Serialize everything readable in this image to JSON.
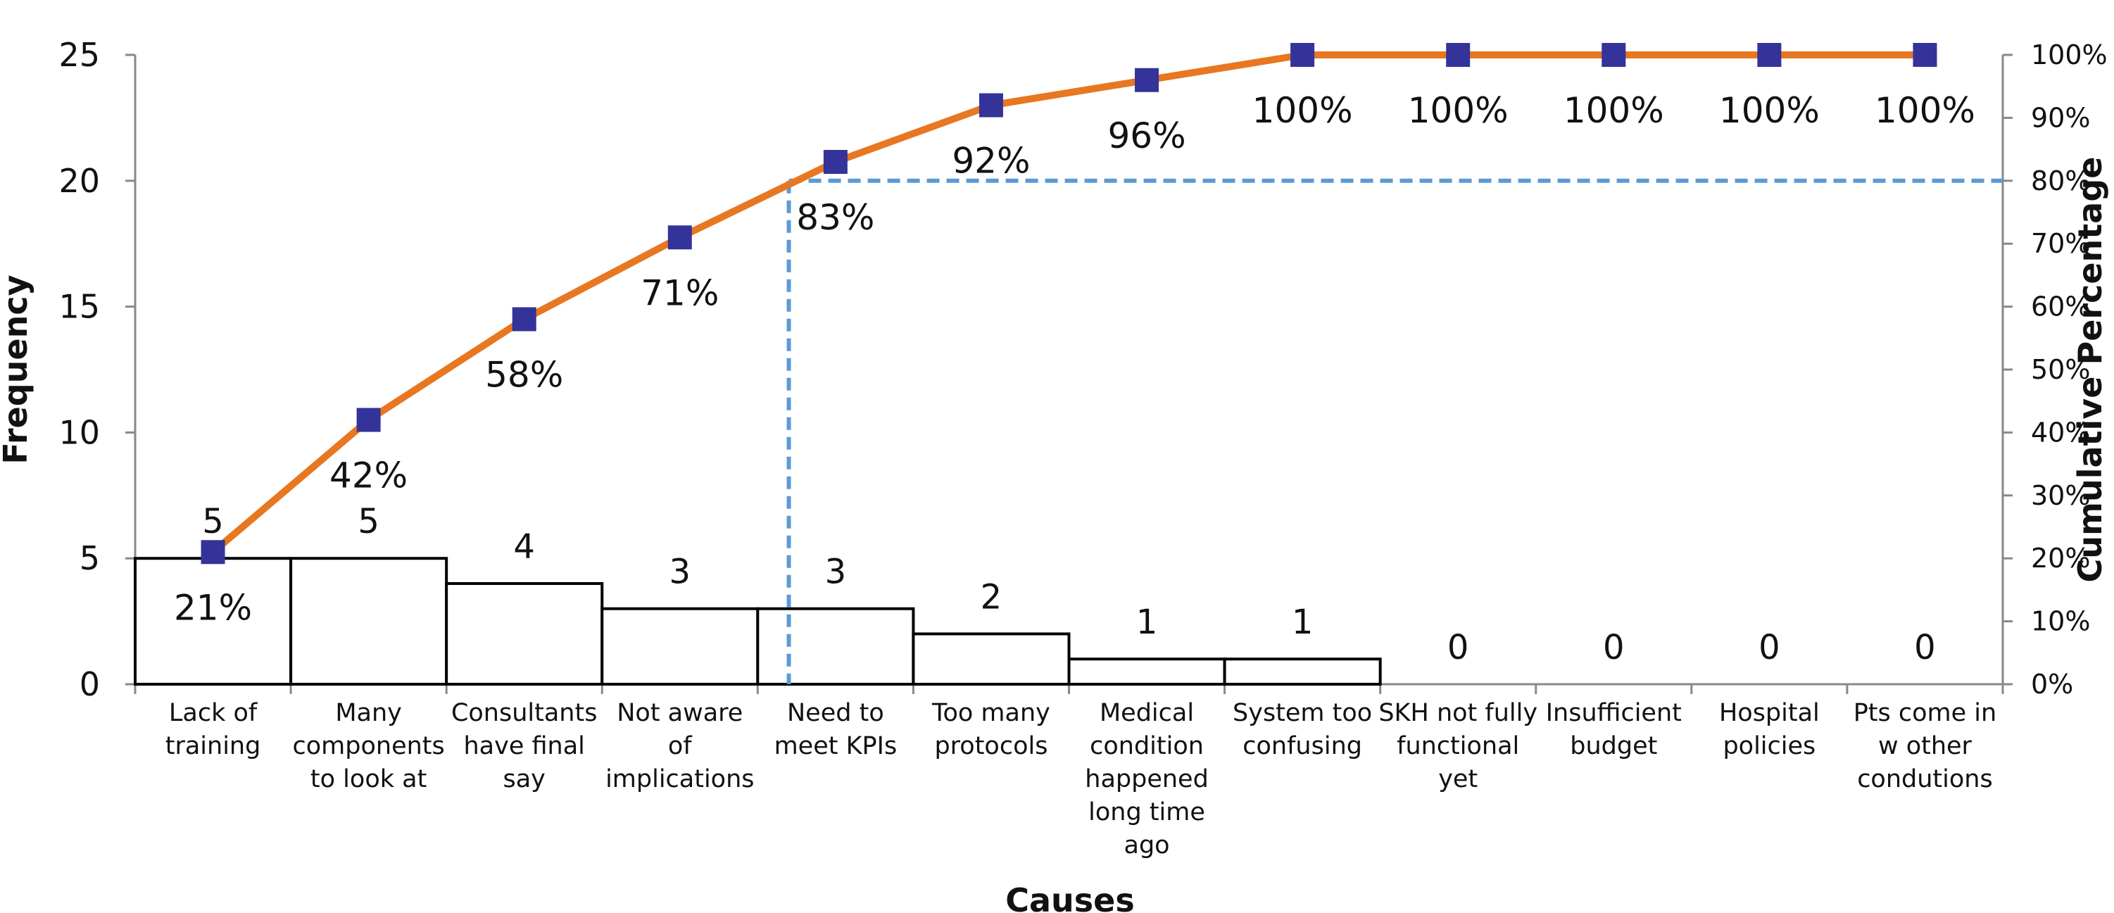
{
  "chart_data": {
    "type": "bar",
    "xlabel": "Causes",
    "ylabel": "Frequency",
    "y2label": "Cumulative Percentage",
    "ylim": [
      0,
      25
    ],
    "y2lim": [
      0,
      100
    ],
    "yticks": [
      "0",
      "5",
      "10",
      "15",
      "20",
      "25"
    ],
    "y2ticks": [
      "0%",
      "10%",
      "20%",
      "30%",
      "40%",
      "50%",
      "60%",
      "70%",
      "80%",
      "90%",
      "100%"
    ],
    "categories": [
      [
        "Lack of",
        "training"
      ],
      [
        "Many",
        "components",
        "to look at"
      ],
      [
        "Consultants",
        "have final",
        "say"
      ],
      [
        "Not aware",
        "of",
        "implications"
      ],
      [
        "Need to",
        "meet KPIs"
      ],
      [
        "Too many",
        "protocols"
      ],
      [
        "Medical",
        "condition",
        "happened",
        "long time",
        "ago"
      ],
      [
        "System too",
        "confusing"
      ],
      [
        "SKH not fully",
        "functional",
        "yet"
      ],
      [
        "Insufficient",
        "budget"
      ],
      [
        "Hospital",
        "policies"
      ],
      [
        "Pts come in",
        "w other",
        "condutions"
      ]
    ],
    "series": [
      {
        "values": [
          5,
          5,
          4,
          3,
          3,
          2,
          1,
          1,
          0,
          0,
          0,
          0
        ],
        "labels": [
          "5",
          "5",
          "4",
          "3",
          "3",
          "2",
          "1",
          "1",
          "0",
          "0",
          "0",
          "0"
        ],
        "color": "#000000"
      },
      {
        "values": [
          21,
          42,
          58,
          71,
          83,
          92,
          96,
          100,
          100,
          100,
          100,
          100
        ],
        "labels": [
          "21%",
          "42%",
          "58%",
          "71%",
          "83%",
          "92%",
          "96%",
          "100%",
          "100%",
          "100%",
          "100%",
          "100%"
        ],
        "line_color": "#E87722",
        "marker_color": "#333399"
      }
    ],
    "threshold": {
      "value": 80,
      "category_index": 4,
      "color": "#5B9BD5"
    },
    "grid": false,
    "legend": "none"
  }
}
